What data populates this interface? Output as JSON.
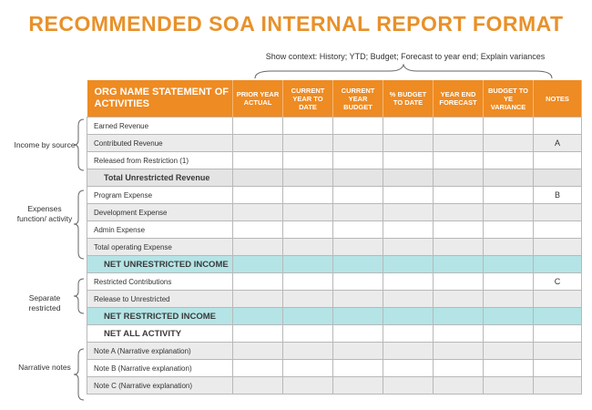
{
  "title": "RECOMMENDED SOA INTERNAL REPORT FORMAT",
  "context_note": "Show context: History; YTD; Budget; Forecast to year end; Explain variances",
  "table": {
    "headers": [
      "ORG NAME STATEMENT OF ACTIVITIES",
      "PRIOR YEAR ACTUAL",
      "CURRENT YEAR TO DATE",
      "CURRENT YEAR BUDGET",
      "% BUDGET TO DATE",
      "YEAR END FORECAST",
      "BUDGET TO YE VARIANCE",
      "NOTES"
    ],
    "rows": [
      {
        "label": "Earned Revenue",
        "note": ""
      },
      {
        "label": "Contributed Revenue",
        "note": "A"
      },
      {
        "label": "Released from Restriction (1)",
        "note": ""
      },
      {
        "label": "Total Unrestricted Revenue",
        "note": ""
      },
      {
        "label": "Program Expense",
        "note": "B"
      },
      {
        "label": "Development Expense",
        "note": ""
      },
      {
        "label": "Admin Expense",
        "note": ""
      },
      {
        "label": "Total operating Expense",
        "note": ""
      },
      {
        "label": "NET UNRESTRICTED INCOME",
        "note": ""
      },
      {
        "label": "Restricted Contributions",
        "note": "C"
      },
      {
        "label": "Release to Unrestricted",
        "note": ""
      },
      {
        "label": "NET RESTRICTED INCOME",
        "note": ""
      },
      {
        "label": "NET ALL ACTIVITY",
        "note": ""
      },
      {
        "label": "Note A (Narrative explanation)",
        "note": ""
      },
      {
        "label": "Note B (Narrative explanation)",
        "note": ""
      },
      {
        "label": "Note C (Narrative explanation)",
        "note": ""
      }
    ]
  },
  "groups": [
    {
      "label": "Income by source"
    },
    {
      "label": "Expenses function/ activity"
    },
    {
      "label": "Separate restricted"
    },
    {
      "label": "Narrative notes"
    }
  ]
}
